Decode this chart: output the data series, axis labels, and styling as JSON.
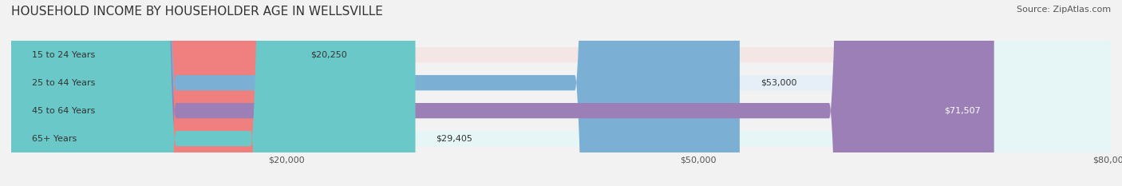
{
  "title": "HOUSEHOLD INCOME BY HOUSEHOLDER AGE IN WELLSVILLE",
  "source": "Source: ZipAtlas.com",
  "categories": [
    "15 to 24 Years",
    "25 to 44 Years",
    "45 to 64 Years",
    "65+ Years"
  ],
  "values": [
    20250,
    53000,
    71507,
    29405
  ],
  "value_labels": [
    "$20,250",
    "$53,000",
    "$71,507",
    "$29,405"
  ],
  "bar_colors": [
    "#f08080",
    "#7bafd4",
    "#9b7fb6",
    "#6bc8c8"
  ],
  "bar_bg_colors": [
    "#f5e6e6",
    "#e6eff7",
    "#ede6f2",
    "#e6f5f5"
  ],
  "xlim": [
    0,
    80000
  ],
  "xticks": [
    20000,
    50000,
    80000
  ],
  "xtick_labels": [
    "$20,000",
    "$50,000",
    "$80,000"
  ],
  "title_fontsize": 11,
  "source_fontsize": 8,
  "label_fontsize": 8,
  "bar_height": 0.55,
  "background_color": "#f2f2f2"
}
